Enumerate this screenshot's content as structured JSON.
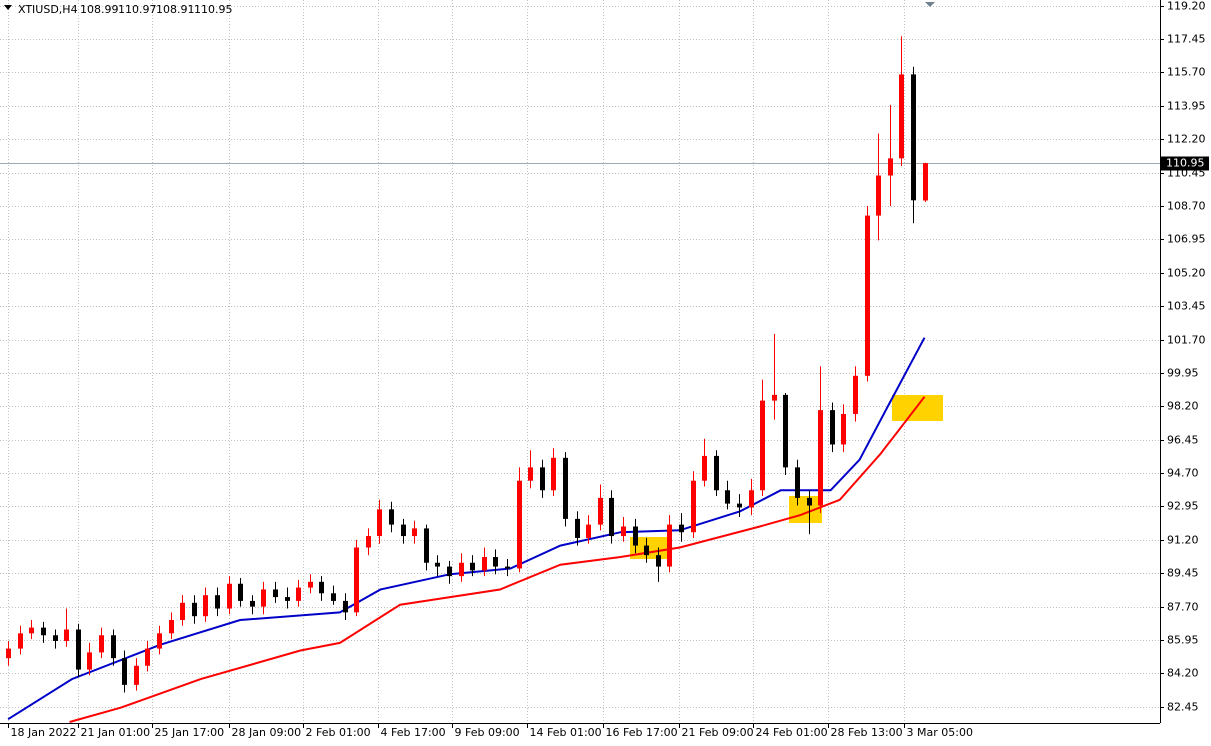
{
  "chart_data": {
    "type": "candlestick",
    "symbol": "XTIUSD,H4",
    "header_values": [
      108.99,
      110.97,
      108.91,
      110.95
    ],
    "price_line": 110.95,
    "up_color": "#ff0000",
    "down_color": "#000000",
    "grid": true,
    "xlim": [
      -0.7,
      99.3
    ],
    "ylim": [
      81.6,
      119.5
    ],
    "xticks": [
      {
        "value": 0,
        "label": "18 Jan 2022"
      },
      {
        "value": 6.0,
        "label": "21 Jan 01:00"
      },
      {
        "value": 12.4,
        "label": "25 Jan 17:00"
      },
      {
        "value": 19.0,
        "label": "28 Jan 09:00"
      },
      {
        "value": 25.4,
        "label": "2 Feb 01:00"
      },
      {
        "value": 31.9,
        "label": "4 Feb 17:00"
      },
      {
        "value": 38.3,
        "label": "9 Feb 09:00"
      },
      {
        "value": 44.7,
        "label": "14 Feb 01:00"
      },
      {
        "value": 51.3,
        "label": "16 Feb 17:00"
      },
      {
        "value": 57.8,
        "label": "21 Feb 09:00"
      },
      {
        "value": 64.2,
        "label": "24 Feb 01:00"
      },
      {
        "value": 70.7,
        "label": "28 Feb 13:00"
      },
      {
        "value": 77.2,
        "label": "3 Mar 05:00"
      }
    ],
    "yticks": [
      82.45,
      {
        "value": 84.2,
        "label": "84.20"
      },
      85.95,
      {
        "value": 87.7,
        "label": "87.70"
      },
      89.45,
      {
        "value": 91.2,
        "label": "91.20"
      },
      92.95,
      {
        "value": 94.7,
        "label": "94.70"
      },
      96.45,
      {
        "value": 98.2,
        "label": "98.20"
      },
      99.95,
      {
        "value": 101.7,
        "label": "101.70"
      },
      103.45,
      {
        "value": 105.2,
        "label": "105.20"
      },
      106.95,
      {
        "value": 108.7,
        "label": "108.70"
      },
      110.45,
      {
        "value": 112.2,
        "label": "112.20"
      },
      113.95,
      {
        "value": 115.7,
        "label": "115.70"
      },
      117.45,
      {
        "value": 119.2,
        "label": "119.20"
      }
    ],
    "open": [
      85.0,
      85.5,
      86.3,
      86.6,
      86.2,
      85.9,
      86.5,
      84.4,
      85.3,
      86.2,
      85.0,
      83.6,
      84.6,
      85.5,
      86.3,
      87.0,
      87.9,
      87.2,
      88.3,
      87.6,
      88.9,
      88.0,
      87.7,
      88.6,
      88.2,
      88.0,
      88.7,
      89.0,
      88.4,
      88.0,
      87.4,
      90.8,
      91.4,
      92.8,
      92.0,
      91.4,
      91.8,
      90.0,
      89.8,
      89.3,
      90.0,
      89.6,
      90.3,
      89.8,
      89.7,
      94.3,
      95.0,
      93.8,
      95.5,
      92.3,
      91.3,
      92.0,
      93.4,
      91.4,
      91.9,
      90.9,
      90.4,
      89.8,
      92.0,
      91.6,
      94.3,
      95.6,
      93.8,
      93.1,
      92.9,
      93.8,
      98.5,
      98.8,
      95.0,
      93.4,
      93.0,
      98.0,
      96.2,
      97.8,
      99.8,
      108.2,
      110.3,
      111.2,
      115.6,
      108.99
    ],
    "high": [
      85.9,
      86.7,
      87.0,
      86.9,
      86.5,
      87.6,
      86.8,
      85.8,
      86.6,
      86.5,
      85.4,
      85.0,
      85.9,
      86.7,
      87.4,
      88.3,
      88.3,
      88.7,
      88.7,
      89.3,
      89.2,
      88.3,
      89.0,
      89.0,
      88.7,
      89.1,
      89.4,
      89.3,
      88.8,
      88.4,
      91.2,
      91.8,
      93.3,
      93.2,
      92.3,
      92.2,
      92.0,
      90.4,
      90.1,
      90.5,
      90.4,
      90.8,
      90.7,
      90.2,
      95.0,
      95.9,
      95.4,
      96.0,
      95.8,
      92.7,
      92.5,
      94.1,
      93.8,
      92.4,
      92.3,
      91.3,
      90.8,
      92.5,
      92.6,
      94.8,
      96.5,
      95.9,
      94.3,
      93.6,
      94.4,
      99.6,
      102.0,
      98.9,
      95.4,
      93.8,
      100.3,
      98.4,
      98.3,
      100.3,
      108.7,
      112.5,
      114.0,
      117.6,
      116.0,
      110.97
    ],
    "low": [
      84.6,
      85.2,
      86.0,
      85.8,
      85.5,
      85.6,
      84.0,
      84.1,
      85.0,
      84.6,
      83.2,
      83.3,
      84.3,
      85.2,
      86.0,
      86.7,
      86.8,
      86.9,
      87.2,
      87.3,
      87.7,
      87.3,
      87.3,
      87.9,
      87.6,
      87.7,
      88.4,
      88.0,
      87.8,
      87.0,
      87.2,
      90.4,
      91.0,
      91.6,
      91.0,
      91.0,
      89.6,
      89.3,
      88.9,
      89.0,
      89.3,
      89.3,
      89.4,
      89.3,
      89.5,
      93.9,
      93.4,
      93.5,
      91.9,
      90.9,
      91.0,
      91.7,
      91.0,
      91.1,
      90.5,
      90.0,
      89.0,
      89.5,
      91.1,
      91.3,
      94.0,
      93.5,
      92.8,
      92.4,
      92.5,
      93.5,
      97.5,
      94.6,
      93.0,
      91.5,
      92.6,
      95.8,
      95.8,
      97.4,
      99.5,
      106.9,
      108.7,
      110.8,
      107.8,
      108.91
    ],
    "close": [
      85.5,
      86.3,
      86.6,
      86.2,
      85.9,
      86.5,
      84.4,
      85.3,
      86.2,
      85.0,
      83.6,
      84.6,
      85.5,
      86.3,
      87.0,
      87.9,
      87.2,
      88.3,
      87.6,
      88.9,
      88.0,
      87.7,
      88.6,
      88.2,
      88.0,
      88.7,
      89.0,
      88.4,
      88.0,
      87.4,
      90.8,
      91.4,
      92.8,
      92.0,
      91.4,
      91.8,
      90.0,
      89.8,
      89.3,
      90.0,
      89.6,
      90.3,
      89.8,
      89.7,
      94.3,
      95.0,
      93.8,
      95.5,
      92.3,
      91.3,
      92.0,
      93.4,
      91.4,
      91.9,
      90.9,
      90.4,
      89.8,
      92.0,
      91.6,
      94.3,
      95.6,
      93.8,
      93.1,
      92.9,
      93.8,
      98.5,
      98.8,
      95.0,
      93.4,
      93.0,
      98.0,
      96.2,
      97.8,
      99.8,
      108.2,
      110.3,
      111.2,
      115.6,
      109.0,
      110.95
    ],
    "series": [
      {
        "color": "#0000c8",
        "x": [
          0,
          5.5,
          13.1,
          20,
          28.6,
          32.1,
          38.1,
          43.3,
          47.6,
          52.8,
          57.9,
          63.1,
          66.6,
          70.9,
          73.4,
          76.1,
          79
        ],
        "values": [
          81.8,
          83.9,
          85.7,
          87.0,
          87.4,
          88.6,
          89.4,
          89.7,
          90.9,
          91.6,
          91.7,
          92.7,
          93.8,
          93.8,
          95.4,
          98.5,
          101.8
        ]
      },
      {
        "color": "#ff0000",
        "x": [
          5.3,
          9.7,
          16.6,
          25.2,
          28.6,
          33.8,
          42.4,
          47.6,
          52.8,
          57.9,
          64.8,
          68.3,
          71.7,
          75.2,
          79
        ],
        "values": [
          81.65,
          82.4,
          83.9,
          85.4,
          85.8,
          87.8,
          88.6,
          89.9,
          90.3,
          90.8,
          91.9,
          92.5,
          93.3,
          95.7,
          98.7
        ]
      }
    ]
  }
}
